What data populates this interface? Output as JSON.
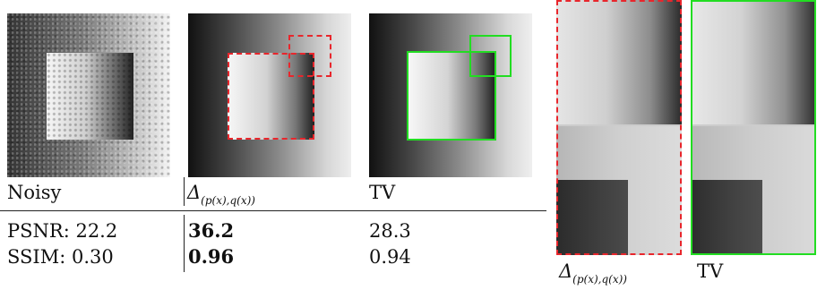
{
  "columns": [
    {
      "label": "Noisy",
      "psnr": "PSNR: 22.2",
      "ssim": "SSIM: 0.30"
    },
    {
      "label_main": "Δ",
      "label_sub": "(p(x),q(x))",
      "psnr": "36.2",
      "ssim": "0.96"
    },
    {
      "label": "TV",
      "psnr": "28.3",
      "ssim": "0.94"
    }
  ],
  "zoom_labels": {
    "left_main": "Δ",
    "left_sub": "(p(x),q(x))",
    "right": "TV"
  },
  "colors": {
    "red_box": "#e8262c",
    "green_box": "#22dd22"
  }
}
